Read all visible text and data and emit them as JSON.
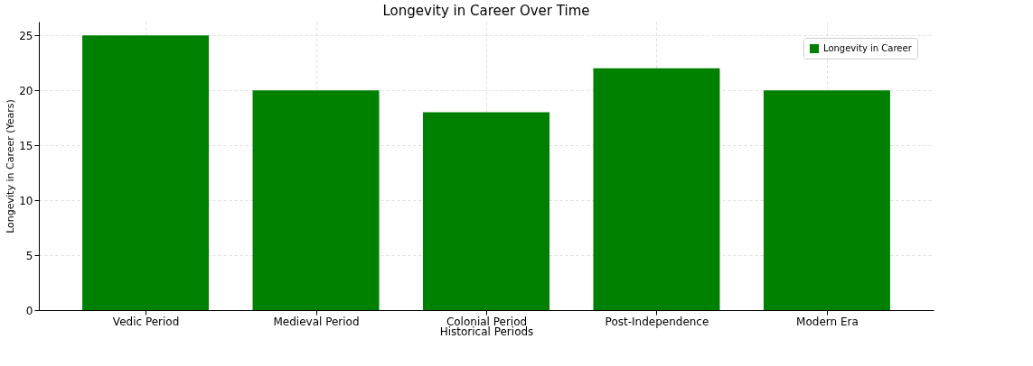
{
  "chart_data": {
    "type": "bar",
    "title": "Longevity in Career Over Time",
    "xlabel": "Historical Periods",
    "ylabel": "Longevity in Career (Years)",
    "categories": [
      "Vedic Period",
      "Medieval Period",
      "Colonial Period",
      "Post-Independence",
      "Modern Era"
    ],
    "series": [
      {
        "name": "Longevity in Career",
        "color": "#008000",
        "values": [
          25,
          20,
          18,
          22,
          20
        ]
      }
    ],
    "ylim": [
      0,
      26.25
    ],
    "yticks": [
      0,
      5,
      10,
      15,
      20,
      25
    ],
    "grid": true,
    "legend": "top right"
  }
}
